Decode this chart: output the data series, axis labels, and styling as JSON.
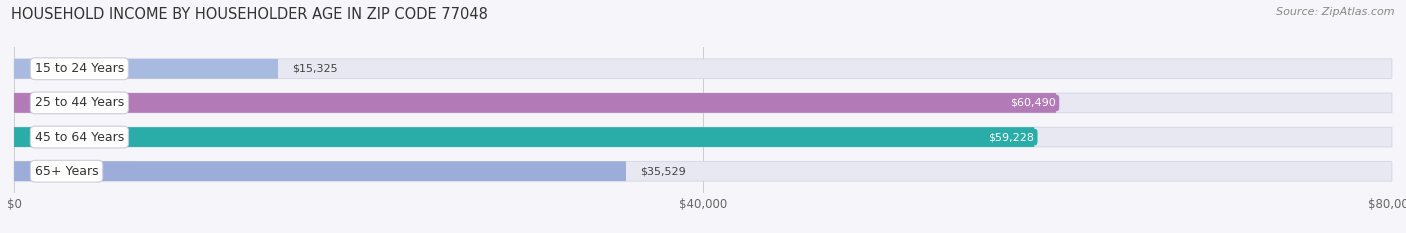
{
  "title": "HOUSEHOLD INCOME BY HOUSEHOLDER AGE IN ZIP CODE 77048",
  "source": "Source: ZipAtlas.com",
  "categories": [
    "15 to 24 Years",
    "25 to 44 Years",
    "45 to 64 Years",
    "65+ Years"
  ],
  "values": [
    15325,
    60490,
    59228,
    35529
  ],
  "bar_colors": [
    "#a8badf",
    "#b37ab8",
    "#2aada8",
    "#9badd8"
  ],
  "bar_label_colors": [
    "#444444",
    "#ffffff",
    "#ffffff",
    "#444444"
  ],
  "bar_labels": [
    "$15,325",
    "$60,490",
    "$59,228",
    "$35,529"
  ],
  "xlim": [
    0,
    80000
  ],
  "xticks": [
    0,
    40000,
    80000
  ],
  "xticklabels": [
    "$0",
    "$40,000",
    "$80,000"
  ],
  "background_color": "#f5f5fa",
  "bar_bg_color": "#e8e8f2",
  "title_fontsize": 10.5,
  "source_fontsize": 8,
  "bar_height": 0.58,
  "label_fontsize": 8,
  "category_fontsize": 9
}
